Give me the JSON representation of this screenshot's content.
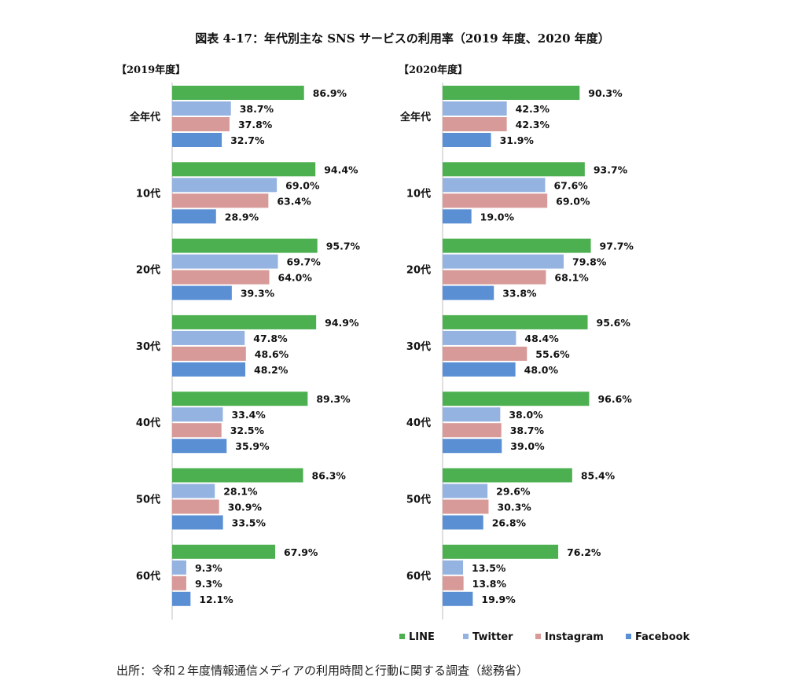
{
  "title": "図表 4-17：年代別主な SNS サービスの利用率（2019 年度、2020 年度）",
  "source": "出所：令和２年度情報通信メディアの利用時間と行動に関する調査（総務省）",
  "colors": {
    "LINE": "#4caf50",
    "Twitter": "#95b3e0",
    "Instagram": "#d79a98",
    "Facebook": "#5b8fd4"
  },
  "legend": [
    "LINE",
    "Twitter",
    "Instagram",
    "Facebook"
  ],
  "chart_data": [
    {
      "type": "bar",
      "orientation": "horizontal",
      "title": "【2019年度】",
      "categories": [
        "全年代",
        "10代",
        "20代",
        "30代",
        "40代",
        "50代",
        "60代"
      ],
      "series": [
        {
          "name": "LINE",
          "values": [
            86.9,
            94.4,
            95.7,
            94.9,
            89.3,
            86.3,
            67.9
          ]
        },
        {
          "name": "Twitter",
          "values": [
            38.7,
            69.0,
            69.7,
            47.8,
            33.4,
            28.1,
            9.3
          ]
        },
        {
          "name": "Instagram",
          "values": [
            37.8,
            63.4,
            64.0,
            48.6,
            32.5,
            30.9,
            9.3
          ]
        },
        {
          "name": "Facebook",
          "values": [
            32.7,
            28.9,
            39.3,
            48.2,
            35.9,
            33.5,
            12.1
          ]
        }
      ],
      "value_format": "%"
    },
    {
      "type": "bar",
      "orientation": "horizontal",
      "title": "【2020年度】",
      "categories": [
        "全年代",
        "10代",
        "20代",
        "30代",
        "40代",
        "50代",
        "60代"
      ],
      "series": [
        {
          "name": "LINE",
          "values": [
            90.3,
            93.7,
            97.7,
            95.6,
            96.6,
            85.4,
            76.2
          ]
        },
        {
          "name": "Twitter",
          "values": [
            42.3,
            67.6,
            79.8,
            48.4,
            38.0,
            29.6,
            13.5
          ]
        },
        {
          "name": "Instagram",
          "values": [
            42.3,
            69.0,
            68.1,
            55.6,
            38.7,
            30.3,
            13.8
          ]
        },
        {
          "name": "Facebook",
          "values": [
            31.9,
            19.0,
            33.8,
            48.0,
            39.0,
            26.8,
            19.9
          ]
        }
      ],
      "value_format": "%"
    }
  ]
}
